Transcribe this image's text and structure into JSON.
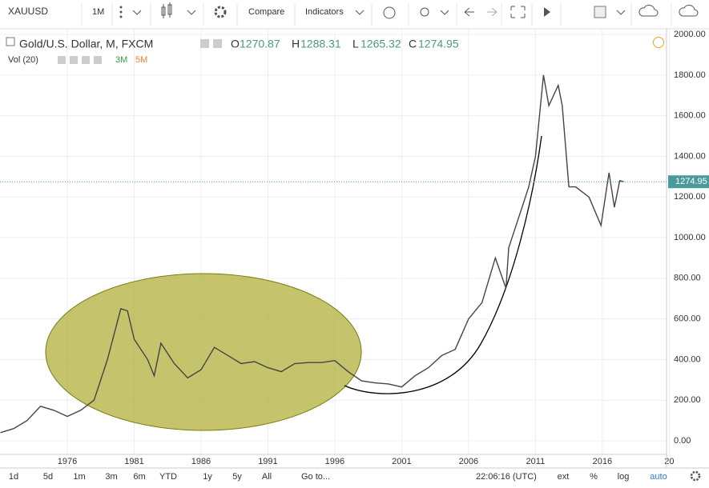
{
  "toolbar": {
    "symbol": "XAUUSD",
    "interval": "1M",
    "compare": "Compare",
    "indicators": "Indicators"
  },
  "legend": {
    "title": "Gold/U.S. Dollar, M, FXCM",
    "open_label": "O",
    "open": 1270.87,
    "high_label": "H",
    "high": 1288.31,
    "low_label": "L",
    "low": 1265.32,
    "close_label": "C",
    "close": 1274.95,
    "volume": "Vol (20)",
    "ma1": "3M",
    "ma2": "5M"
  },
  "chart_data": {
    "type": "line",
    "color": "#444444",
    "x": [
      1971,
      1972,
      1973,
      1974,
      1975,
      1976,
      1977,
      1978,
      1979,
      1980,
      1980.5,
      1981,
      1982,
      1982.5,
      1983,
      1984,
      1985,
      1986,
      1987,
      1988,
      1989,
      1990,
      1991,
      1992,
      1993,
      1994,
      1995,
      1996,
      1997,
      1998,
      1999,
      2000,
      2001,
      2002,
      2003,
      2004,
      2005,
      2006,
      2007,
      2008,
      2008.8,
      2009,
      2010,
      2010.5,
      2011,
      2011.6,
      2012,
      2012.7,
      2013,
      2013.5,
      2014,
      2015,
      2015.9,
      2016.5,
      2016.9,
      2017.3,
      2017.6
    ],
    "values": [
      40,
      60,
      100,
      170,
      150,
      120,
      150,
      200,
      400,
      650,
      640,
      500,
      400,
      320,
      480,
      380,
      310,
      350,
      460,
      420,
      380,
      390,
      360,
      340,
      380,
      385,
      385,
      395,
      340,
      295,
      285,
      280,
      265,
      320,
      360,
      420,
      450,
      600,
      680,
      900,
      750,
      950,
      1150,
      1250,
      1400,
      1800,
      1650,
      1750,
      1650,
      1250,
      1250,
      1200,
      1060,
      1320,
      1150,
      1280,
      1275
    ],
    "xlim": [
      1970.97,
      2020.8
    ],
    "xticks": [
      1976,
      1981,
      1986,
      1991,
      1996,
      2001,
      2006,
      2011,
      2016,
      {
        "value": 2021,
        "label": "20"
      }
    ],
    "ylim": [
      -67,
      2028
    ],
    "yticks": [
      {
        "value": 0,
        "label": "0.00"
      },
      {
        "value": 200,
        "label": "200.00"
      },
      {
        "value": 400,
        "label": "400.00"
      },
      {
        "value": 600,
        "label": "600.00"
      },
      {
        "value": 800,
        "label": "800.00"
      },
      {
        "value": 1000,
        "label": "1000.00"
      },
      {
        "value": 1200,
        "label": "1200.00"
      },
      {
        "value": 1400,
        "label": "1400.00"
      },
      {
        "value": 1600,
        "label": "1600.00"
      },
      {
        "value": 1800,
        "label": "1800.00"
      },
      {
        "value": 2000,
        "label": "2000.00"
      }
    ],
    "grid": true
  },
  "bottom_bar": {
    "ranges": [
      "1d",
      "5d",
      "1m",
      "3m",
      "6m",
      "YTD",
      "1y",
      "5y",
      "All"
    ],
    "goto": "Go to...",
    "time": "22:06:16 (UTC)",
    "ext": "ext",
    "percent": "%",
    "log": "log",
    "auto": "auto"
  }
}
